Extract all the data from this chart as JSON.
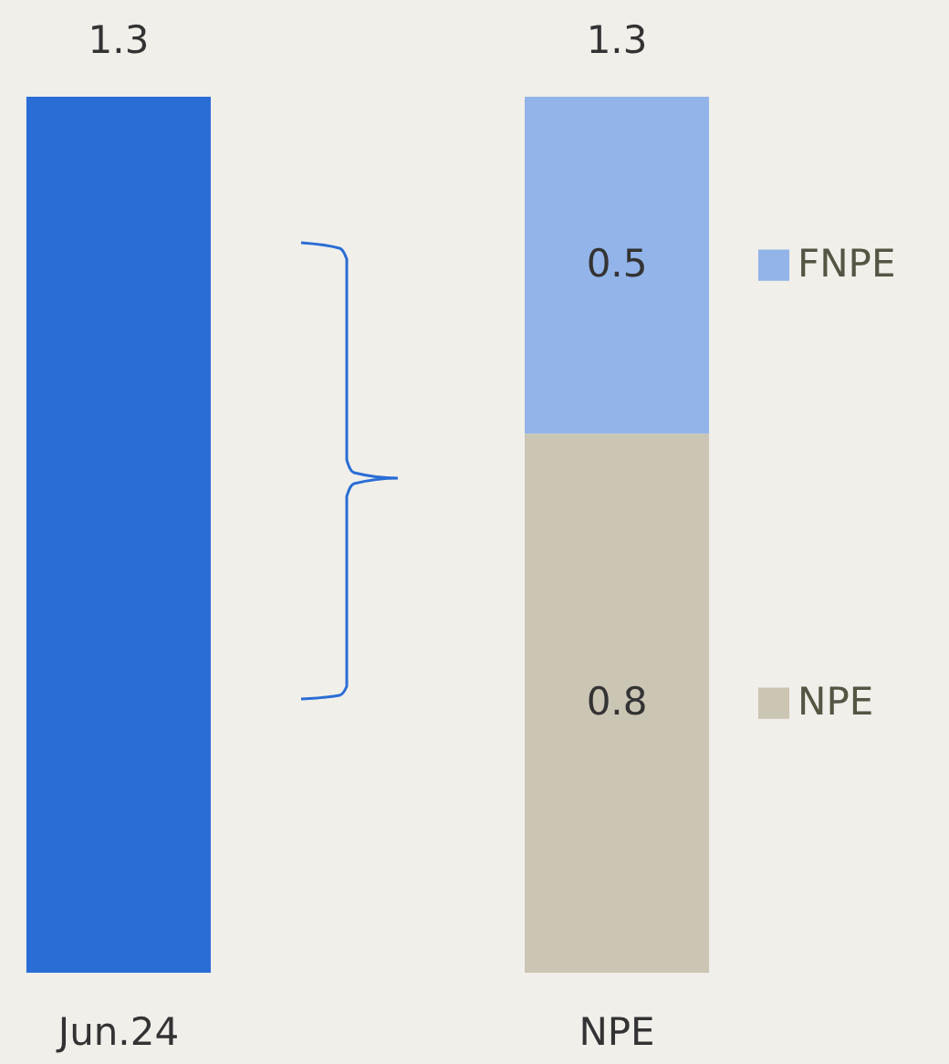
{
  "chart_data": {
    "type": "bar",
    "categories": [
      "Jun.24",
      "NPE"
    ],
    "stacked": true,
    "legend": "right",
    "series": [
      {
        "color": "#2a6dd5",
        "values": [
          1.3,
          null
        ],
        "value_labels": [
          null,
          null
        ]
      },
      {
        "name": "NPE",
        "color": "#cbc5b4",
        "values": [
          null,
          0.8
        ],
        "value_labels": [
          null,
          "0.8"
        ]
      },
      {
        "name": "FNPE",
        "color": "#93b4e8",
        "values": [
          null,
          0.5
        ],
        "value_labels": [
          null,
          "0.5"
        ]
      }
    ],
    "totals": [
      "1.3",
      "1.3"
    ]
  }
}
